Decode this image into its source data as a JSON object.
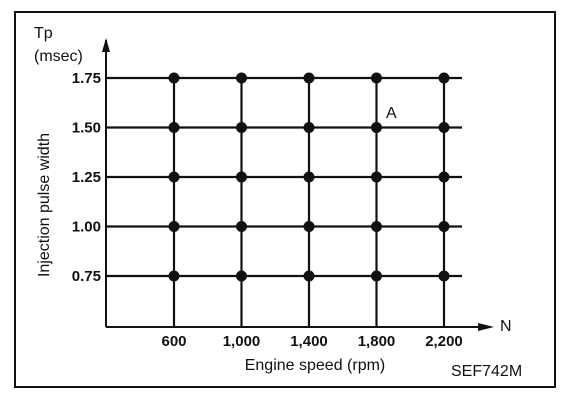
{
  "chart_data": {
    "type": "scatter",
    "x_categories": [
      "600",
      "1,000",
      "1,400",
      "1,800",
      "2,200"
    ],
    "y_categories": [
      "0.75",
      "1.00",
      "1.25",
      "1.50",
      "1.75"
    ],
    "x_values": [
      600,
      1000,
      1400,
      1800,
      2200
    ],
    "y_values": [
      0.75,
      1.0,
      1.25,
      1.5,
      1.75
    ],
    "grid": "every point of the 5x5 grid is marked",
    "xlabel": "Engine speed (rpm)",
    "x_axis_symbol": "N",
    "ylabel": "Injection pulse width",
    "y_axis_symbol": "Tp",
    "y_axis_unit": "(msec)",
    "annotation": {
      "text": "A",
      "x": 1800,
      "y": 1.5
    }
  },
  "figure_code": "SEF742M",
  "colors": {
    "ink": "#111111",
    "background": "#ffffff"
  }
}
